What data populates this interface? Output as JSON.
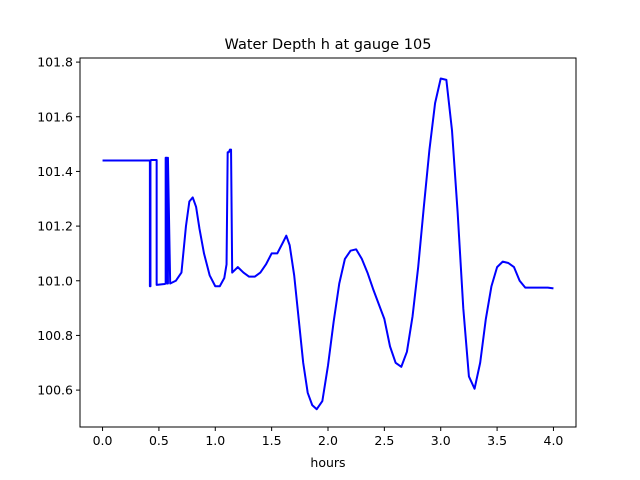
{
  "chart_data": {
    "type": "line",
    "title": "Water Depth h at gauge 105",
    "xlabel": "hours",
    "ylabel": "",
    "xlim": [
      -0.2,
      4.2
    ],
    "ylim": [
      100.465,
      101.815
    ],
    "x_ticks": [
      0.0,
      0.5,
      1.0,
      1.5,
      2.0,
      2.5,
      3.0,
      3.5,
      4.0
    ],
    "x_tick_labels": [
      "0.0",
      "0.5",
      "1.0",
      "1.5",
      "2.0",
      "2.5",
      "3.0",
      "3.5",
      "4.0"
    ],
    "y_ticks": [
      100.6,
      100.8,
      101.0,
      101.2,
      101.4,
      101.6,
      101.8
    ],
    "y_tick_labels": [
      "100.6",
      "100.8",
      "101.0",
      "101.2",
      "101.4",
      "101.6",
      "101.8"
    ],
    "grid": false,
    "line_color": "#0000ff",
    "series": [
      {
        "x": [
          0.0,
          0.42,
          0.42,
          0.425,
          0.425,
          0.43,
          0.43,
          0.47,
          0.48,
          0.48,
          0.55,
          0.56,
          0.56,
          0.57,
          0.57,
          0.58,
          0.58,
          0.6,
          0.65,
          0.7,
          0.74,
          0.77,
          0.8,
          0.83,
          0.86,
          0.9,
          0.95,
          1.0,
          1.04,
          1.08,
          1.1,
          1.11,
          1.12,
          1.13,
          1.14,
          1.15,
          1.2,
          1.25,
          1.3,
          1.35,
          1.4,
          1.45,
          1.5,
          1.55,
          1.6,
          1.63,
          1.66,
          1.7,
          1.74,
          1.78,
          1.82,
          1.86,
          1.9,
          1.95,
          2.0,
          2.05,
          2.1,
          2.15,
          2.2,
          2.25,
          2.3,
          2.35,
          2.4,
          2.5,
          2.55,
          2.6,
          2.65,
          2.7,
          2.75,
          2.8,
          2.85,
          2.9,
          2.95,
          3.0,
          3.05,
          3.1,
          3.15,
          3.2,
          3.25,
          3.3,
          3.35,
          3.4,
          3.45,
          3.5,
          3.55,
          3.6,
          3.65,
          3.7,
          3.75,
          3.8,
          3.85,
          3.9,
          3.95,
          4.0
        ],
        "y": [
          101.44,
          101.44,
          100.98,
          100.98,
          101.44,
          101.44,
          101.442,
          101.442,
          101.442,
          100.985,
          100.988,
          100.99,
          101.45,
          101.45,
          100.99,
          100.99,
          101.45,
          100.99,
          101.0,
          101.03,
          101.2,
          101.29,
          101.305,
          101.27,
          101.19,
          101.1,
          101.02,
          100.98,
          100.98,
          101.01,
          101.06,
          101.47,
          101.47,
          101.48,
          101.48,
          101.03,
          101.05,
          101.03,
          101.015,
          101.015,
          101.03,
          101.06,
          101.1,
          101.1,
          101.14,
          101.165,
          101.13,
          101.02,
          100.86,
          100.7,
          100.59,
          100.545,
          100.53,
          100.56,
          100.69,
          100.85,
          100.99,
          101.08,
          101.11,
          101.115,
          101.08,
          101.03,
          100.97,
          100.86,
          100.76,
          100.7,
          100.685,
          100.74,
          100.87,
          101.05,
          101.27,
          101.48,
          101.65,
          101.74,
          101.735,
          101.55,
          101.25,
          100.9,
          100.65,
          100.605,
          100.7,
          100.86,
          100.98,
          101.05,
          101.07,
          101.065,
          101.05,
          101.0,
          100.975,
          100.975,
          100.975,
          100.975,
          100.975,
          100.972
        ]
      }
    ]
  }
}
